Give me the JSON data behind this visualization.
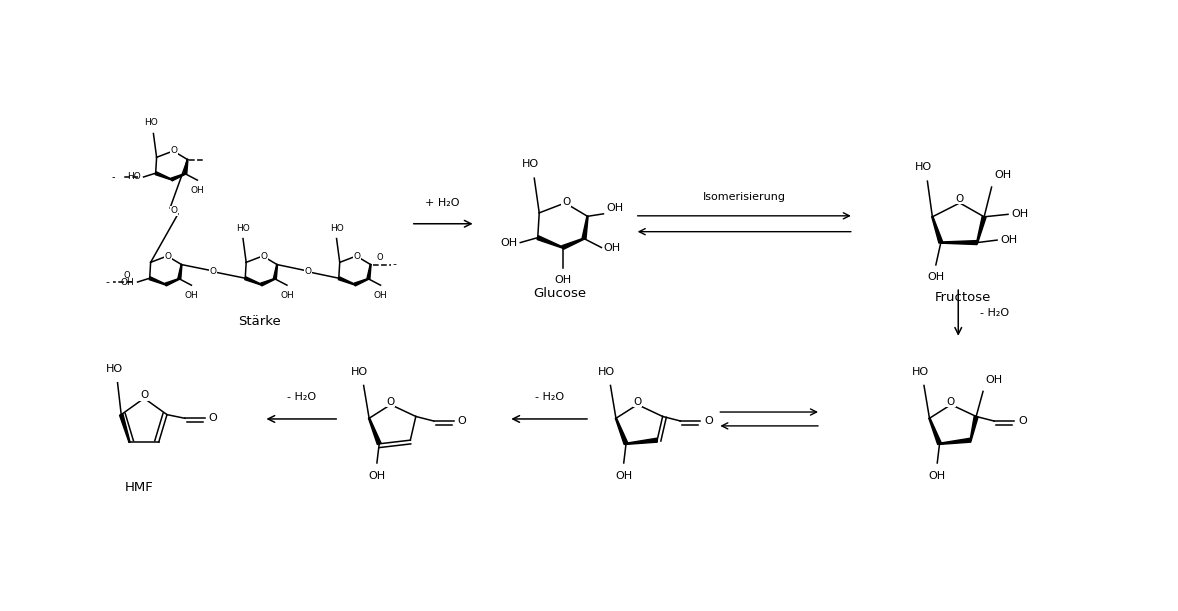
{
  "background_color": "#ffffff",
  "fig_width": 11.78,
  "fig_height": 6.11,
  "font_family": "Arial",
  "label_starke": "Stärke",
  "label_glucose": "Glucose",
  "label_fructose": "Fructose",
  "label_hmf": "HMF",
  "arrow1_label": "+ H₂O",
  "arrow2_label": "Isomerisierung",
  "arrow3_label": "- H₂O",
  "arrow4_label": "- H₂O",
  "arrow5_label": "- H₂O"
}
